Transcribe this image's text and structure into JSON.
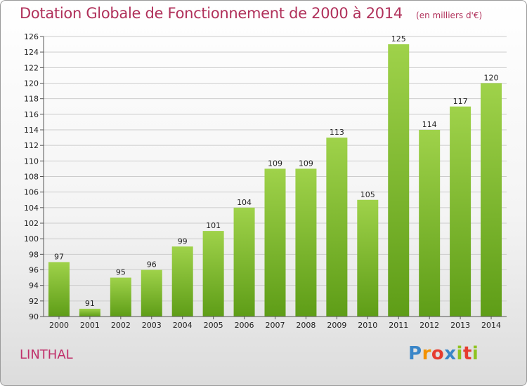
{
  "header": {
    "title": "Dotation Globale de Fonctionnement de 2000 à 2014",
    "subtitle": "(en milliers d'€)"
  },
  "commune": "LINTHAL",
  "logo_text": "Proxiti",
  "colors": {
    "title": "#b0305a",
    "bar_light": "#9fd24a",
    "bar_dark": "#5e9d17",
    "grid": "#cccccc"
  },
  "chart_data": {
    "type": "bar",
    "categories": [
      "2000",
      "2001",
      "2002",
      "2003",
      "2004",
      "2005",
      "2006",
      "2007",
      "2008",
      "2009",
      "2010",
      "2011",
      "2012",
      "2013",
      "2014"
    ],
    "values": [
      97,
      91,
      95,
      96,
      99,
      101,
      104,
      109,
      109,
      113,
      105,
      125,
      114,
      117,
      120
    ],
    "data_labels": [
      "97",
      "91",
      "95",
      "96",
      "99",
      "101",
      "104",
      "109",
      "109",
      "113",
      "105",
      "125",
      "114",
      "117",
      "120"
    ],
    "title": "Dotation Globale de Fonctionnement de 2000 à 2014",
    "subtitle": "(en milliers d'€)",
    "xlabel": "",
    "ylabel": "",
    "ylim": [
      90,
      126
    ],
    "yticks": [
      "90",
      "92",
      "94",
      "96",
      "98",
      "100",
      "102",
      "104",
      "106",
      "108",
      "110",
      "112",
      "114",
      "116",
      "118",
      "120",
      "122",
      "124",
      "126"
    ],
    "grid": true,
    "legend": "none"
  }
}
